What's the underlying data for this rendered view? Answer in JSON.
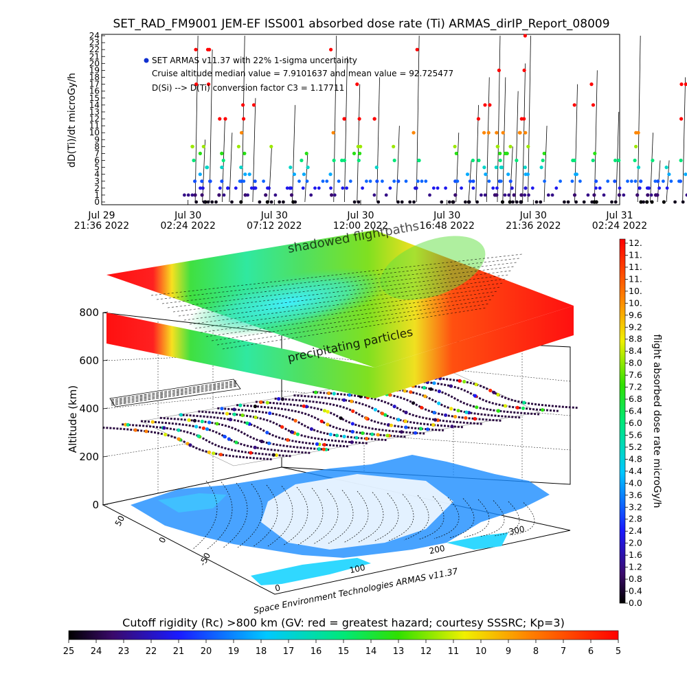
{
  "title": "SET_RAD_FM9001  JEM-EF ISS001 absorbed dose rate (Ti) ARMAS_dirIP_Report_08009",
  "chart_data": [
    {
      "type": "scatter",
      "ylabel": "dD(Ti)/dt microGy/h",
      "ylim": [
        0,
        24
      ],
      "yticks": [
        "0",
        "1",
        "2",
        "3",
        "4",
        "5",
        "6",
        "7",
        "8",
        "9",
        "10",
        "11",
        "12",
        "13",
        "14",
        "15",
        "16",
        "17",
        "18",
        "19",
        "20",
        "21",
        "22",
        "23",
        "24"
      ],
      "xticks": [
        {
          "top": "Jul 29",
          "bottom": "21:36 2022"
        },
        {
          "top": "Jul 30",
          "bottom": "02:24 2022"
        },
        {
          "top": "Jul 30",
          "bottom": "07:12 2022"
        },
        {
          "top": "Jul 30",
          "bottom": "12:00 2022"
        },
        {
          "top": "Jul 30",
          "bottom": "16:48 2022"
        },
        {
          "top": "Jul 30",
          "bottom": "21:36 2022"
        },
        {
          "top": "Jul 31",
          "bottom": "02:24 2022"
        }
      ],
      "legend": {
        "marker_color": "#1030d0",
        "lines": [
          "SET ARMAS v11.37 with 22% 1-sigma uncertainty",
          "Cruise altitude median value = 7.9101637 and mean value = 92.725477",
          "D(Si) --> D(Ti) conversion factor C3 = 1.17711"
        ]
      },
      "spike_hours": [
        5.2,
        5.6,
        6.0,
        6.7,
        7.1,
        7.8,
        8.4,
        9.3,
        10.6,
        11.3,
        12.9,
        13.5,
        14.2,
        15.3,
        16.4,
        17.5,
        19.7,
        20.4,
        20.8,
        21.4,
        22.0,
        22.3,
        22.7,
        23.0,
        23.4,
        23.7,
        24.6,
        26.3,
        27.4,
        28.6,
        29.8,
        30.5,
        30.9,
        31.4,
        32.3,
        33.1,
        33.5,
        34.2
      ]
    },
    {
      "type": "other",
      "zlabel": "Altitude (km)",
      "zticks": [
        "0",
        "200",
        "400",
        "600",
        "800"
      ],
      "lat_ticks": [
        "50",
        "0",
        "-50"
      ],
      "lon_ticks": [
        "0",
        "100",
        "200",
        "300"
      ],
      "annotations": [
        "shadowed flightpaths",
        "precipitating particles"
      ]
    }
  ],
  "colorbar_right": {
    "label": "flight absorbed dose rate microGy/h",
    "ticks": [
      "12.",
      "11.",
      "11.",
      "11.",
      "10.",
      "10.",
      "9.6",
      "9.2",
      "8.8",
      "8.4",
      "8.0",
      "7.6",
      "7.2",
      "6.8",
      "6.4",
      "6.0",
      "5.6",
      "5.2",
      "4.8",
      "4.4",
      "4.0",
      "3.6",
      "3.2",
      "2.8",
      "2.4",
      "2.0",
      "1.6",
      "1.2",
      "0.8",
      "0.4",
      "0.0"
    ]
  },
  "colorbar_bottom": {
    "label": "Cutoff rigidity (Rc) >800 km (GV: red = greatest hazard; courtesy SSSRC; Kp=3)",
    "ticks": [
      "25",
      "24",
      "23",
      "22",
      "21",
      "20",
      "19",
      "18",
      "17",
      "16",
      "15",
      "14",
      "13",
      "12",
      "11",
      "10",
      "9",
      "8",
      "7",
      "6",
      "5"
    ]
  },
  "credit": "Space Environment Technologies ARMAS v11.37"
}
